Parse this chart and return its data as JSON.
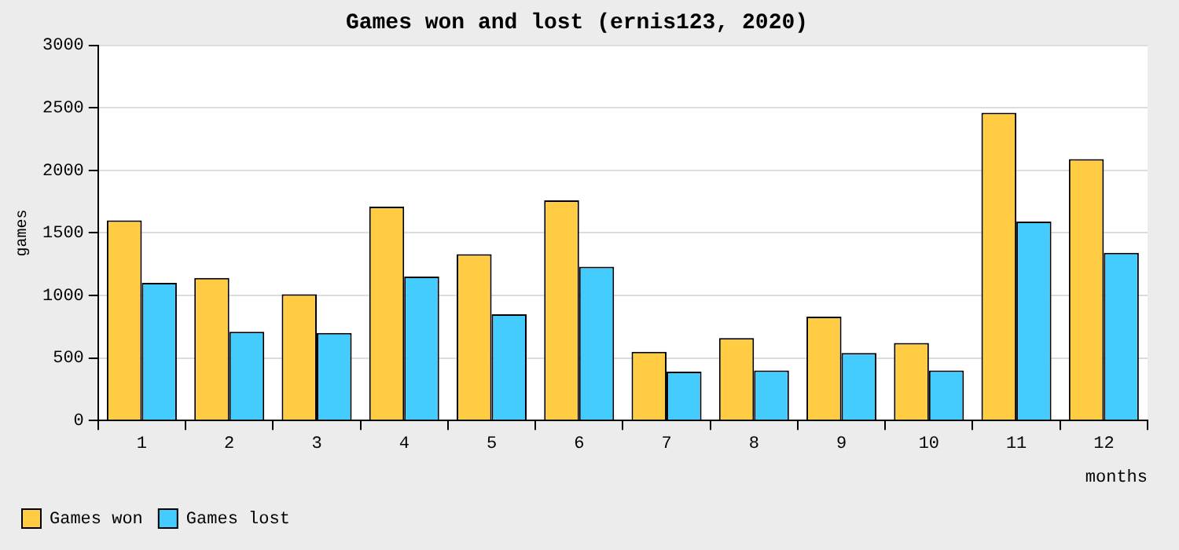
{
  "chart_data": {
    "type": "bar",
    "title": "Games won and lost (ernis123, 2020)",
    "xlabel": "months",
    "ylabel": "games",
    "categories": [
      "1",
      "2",
      "3",
      "4",
      "5",
      "6",
      "7",
      "8",
      "9",
      "10",
      "11",
      "12"
    ],
    "series": [
      {
        "name": "Games won",
        "color": "#ffcc44",
        "values": [
          1600,
          1140,
          1010,
          1710,
          1330,
          1760,
          550,
          660,
          830,
          620,
          2460,
          2090
        ]
      },
      {
        "name": "Games lost",
        "color": "#44ccff",
        "values": [
          1100,
          710,
          700,
          1150,
          850,
          1230,
          390,
          400,
          540,
          400,
          1590,
          1340
        ]
      }
    ],
    "ylim": [
      0,
      3000
    ],
    "yticks": [
      0,
      500,
      1000,
      1500,
      2000,
      2500,
      3000
    ],
    "grid": "y",
    "legend": "bottom left"
  }
}
